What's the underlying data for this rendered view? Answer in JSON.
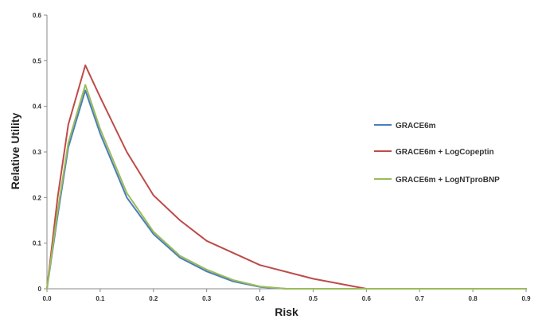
{
  "chart_data": {
    "type": "line",
    "xlabel": "Risk",
    "ylabel": "Relative Utility",
    "xlim": [
      0,
      0.9
    ],
    "ylim": [
      0,
      0.6
    ],
    "xticks": [
      "0.0",
      "0.1",
      "0.2",
      "0.3",
      "0.4",
      "0.5",
      "0.6",
      "0.7",
      "0.8",
      "0.9"
    ],
    "yticks": [
      "0",
      "0.1",
      "0.2",
      "0.3",
      "0.4",
      "0.5",
      "0.6"
    ],
    "grid": false,
    "legend_position": "right",
    "series": [
      {
        "name": "GRACE6m",
        "color": "#4a7ebb",
        "points": [
          [
            0,
            0
          ],
          [
            0.02,
            0.16
          ],
          [
            0.04,
            0.31
          ],
          [
            0.072,
            0.435
          ],
          [
            0.1,
            0.34
          ],
          [
            0.15,
            0.2
          ],
          [
            0.2,
            0.12
          ],
          [
            0.25,
            0.068
          ],
          [
            0.3,
            0.038
          ],
          [
            0.35,
            0.016
          ],
          [
            0.4,
            0.004
          ],
          [
            0.45,
            0
          ],
          [
            0.9,
            0
          ]
        ]
      },
      {
        "name": "GRACE6m + LogCopeptin",
        "color": "#be4b48",
        "points": [
          [
            0,
            0
          ],
          [
            0.02,
            0.2
          ],
          [
            0.04,
            0.36
          ],
          [
            0.072,
            0.49
          ],
          [
            0.1,
            0.42
          ],
          [
            0.15,
            0.3
          ],
          [
            0.2,
            0.205
          ],
          [
            0.25,
            0.15
          ],
          [
            0.3,
            0.105
          ],
          [
            0.4,
            0.052
          ],
          [
            0.5,
            0.022
          ],
          [
            0.6,
            0
          ],
          [
            0.9,
            0
          ]
        ]
      },
      {
        "name": "GRACE6m + LogNTproBNP",
        "color": "#9bbb59",
        "points": [
          [
            0,
            0
          ],
          [
            0.02,
            0.17
          ],
          [
            0.04,
            0.32
          ],
          [
            0.072,
            0.447
          ],
          [
            0.1,
            0.35
          ],
          [
            0.15,
            0.21
          ],
          [
            0.2,
            0.125
          ],
          [
            0.25,
            0.072
          ],
          [
            0.3,
            0.042
          ],
          [
            0.35,
            0.019
          ],
          [
            0.4,
            0.005
          ],
          [
            0.45,
            0
          ],
          [
            0.9,
            0
          ]
        ]
      }
    ]
  }
}
